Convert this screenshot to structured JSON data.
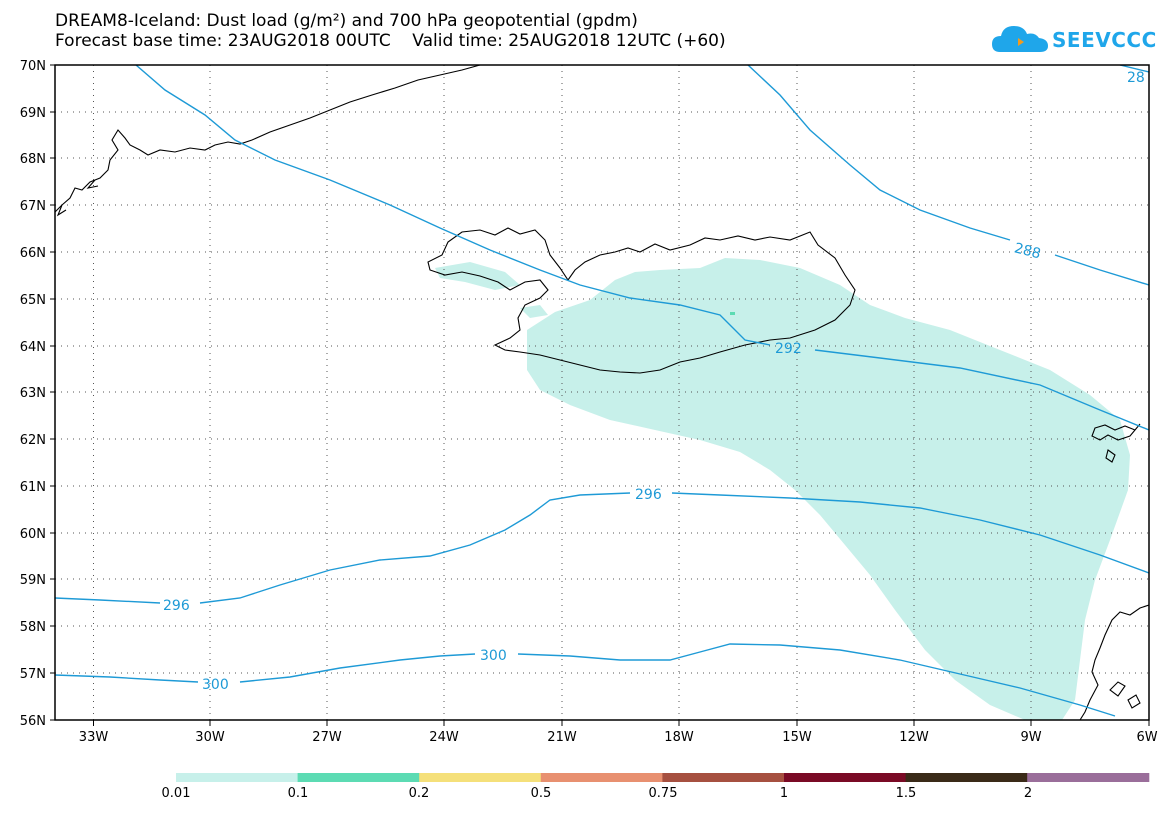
{
  "title_line1": "DREAM8-Iceland: Dust load (g/m²) and 700 hPa geopotential (gpdm)",
  "title_line2": "Forecast base time: 23AUG2018 00UTC    Valid time: 25AUG2018 12UTC (+60)",
  "logo_text": "SEEVCCC",
  "logo_icon": "cloud-icon",
  "lat_labels": [
    "70N",
    "69N",
    "68N",
    "67N",
    "66N",
    "65N",
    "64N",
    "63N",
    "62N",
    "61N",
    "60N",
    "59N",
    "58N",
    "57N",
    "56N"
  ],
  "lon_labels": [
    "33W",
    "30W",
    "27W",
    "24W",
    "21W",
    "18W",
    "15W",
    "12W",
    "9W",
    "6W"
  ],
  "contour_labels": {
    "c288": "288",
    "c292": "292",
    "c296_east": "296",
    "c296_west": "296",
    "c300_west": "300",
    "c300_mid": "300",
    "c28_partial": "28"
  },
  "colorbar": {
    "labels": [
      "0.01",
      "0.1",
      "0.2",
      "0.5",
      "0.75",
      "1",
      "1.5",
      "2"
    ],
    "colors": [
      "#c7f0ea",
      "#5cdbb3",
      "#f5e07a",
      "#e89070",
      "#a65040",
      "#7a0a25",
      "#3a2a18",
      "#9a6e9a"
    ]
  },
  "colors": {
    "contour": "#1e9ad6",
    "dust_shading": "#c7f0ea"
  }
}
